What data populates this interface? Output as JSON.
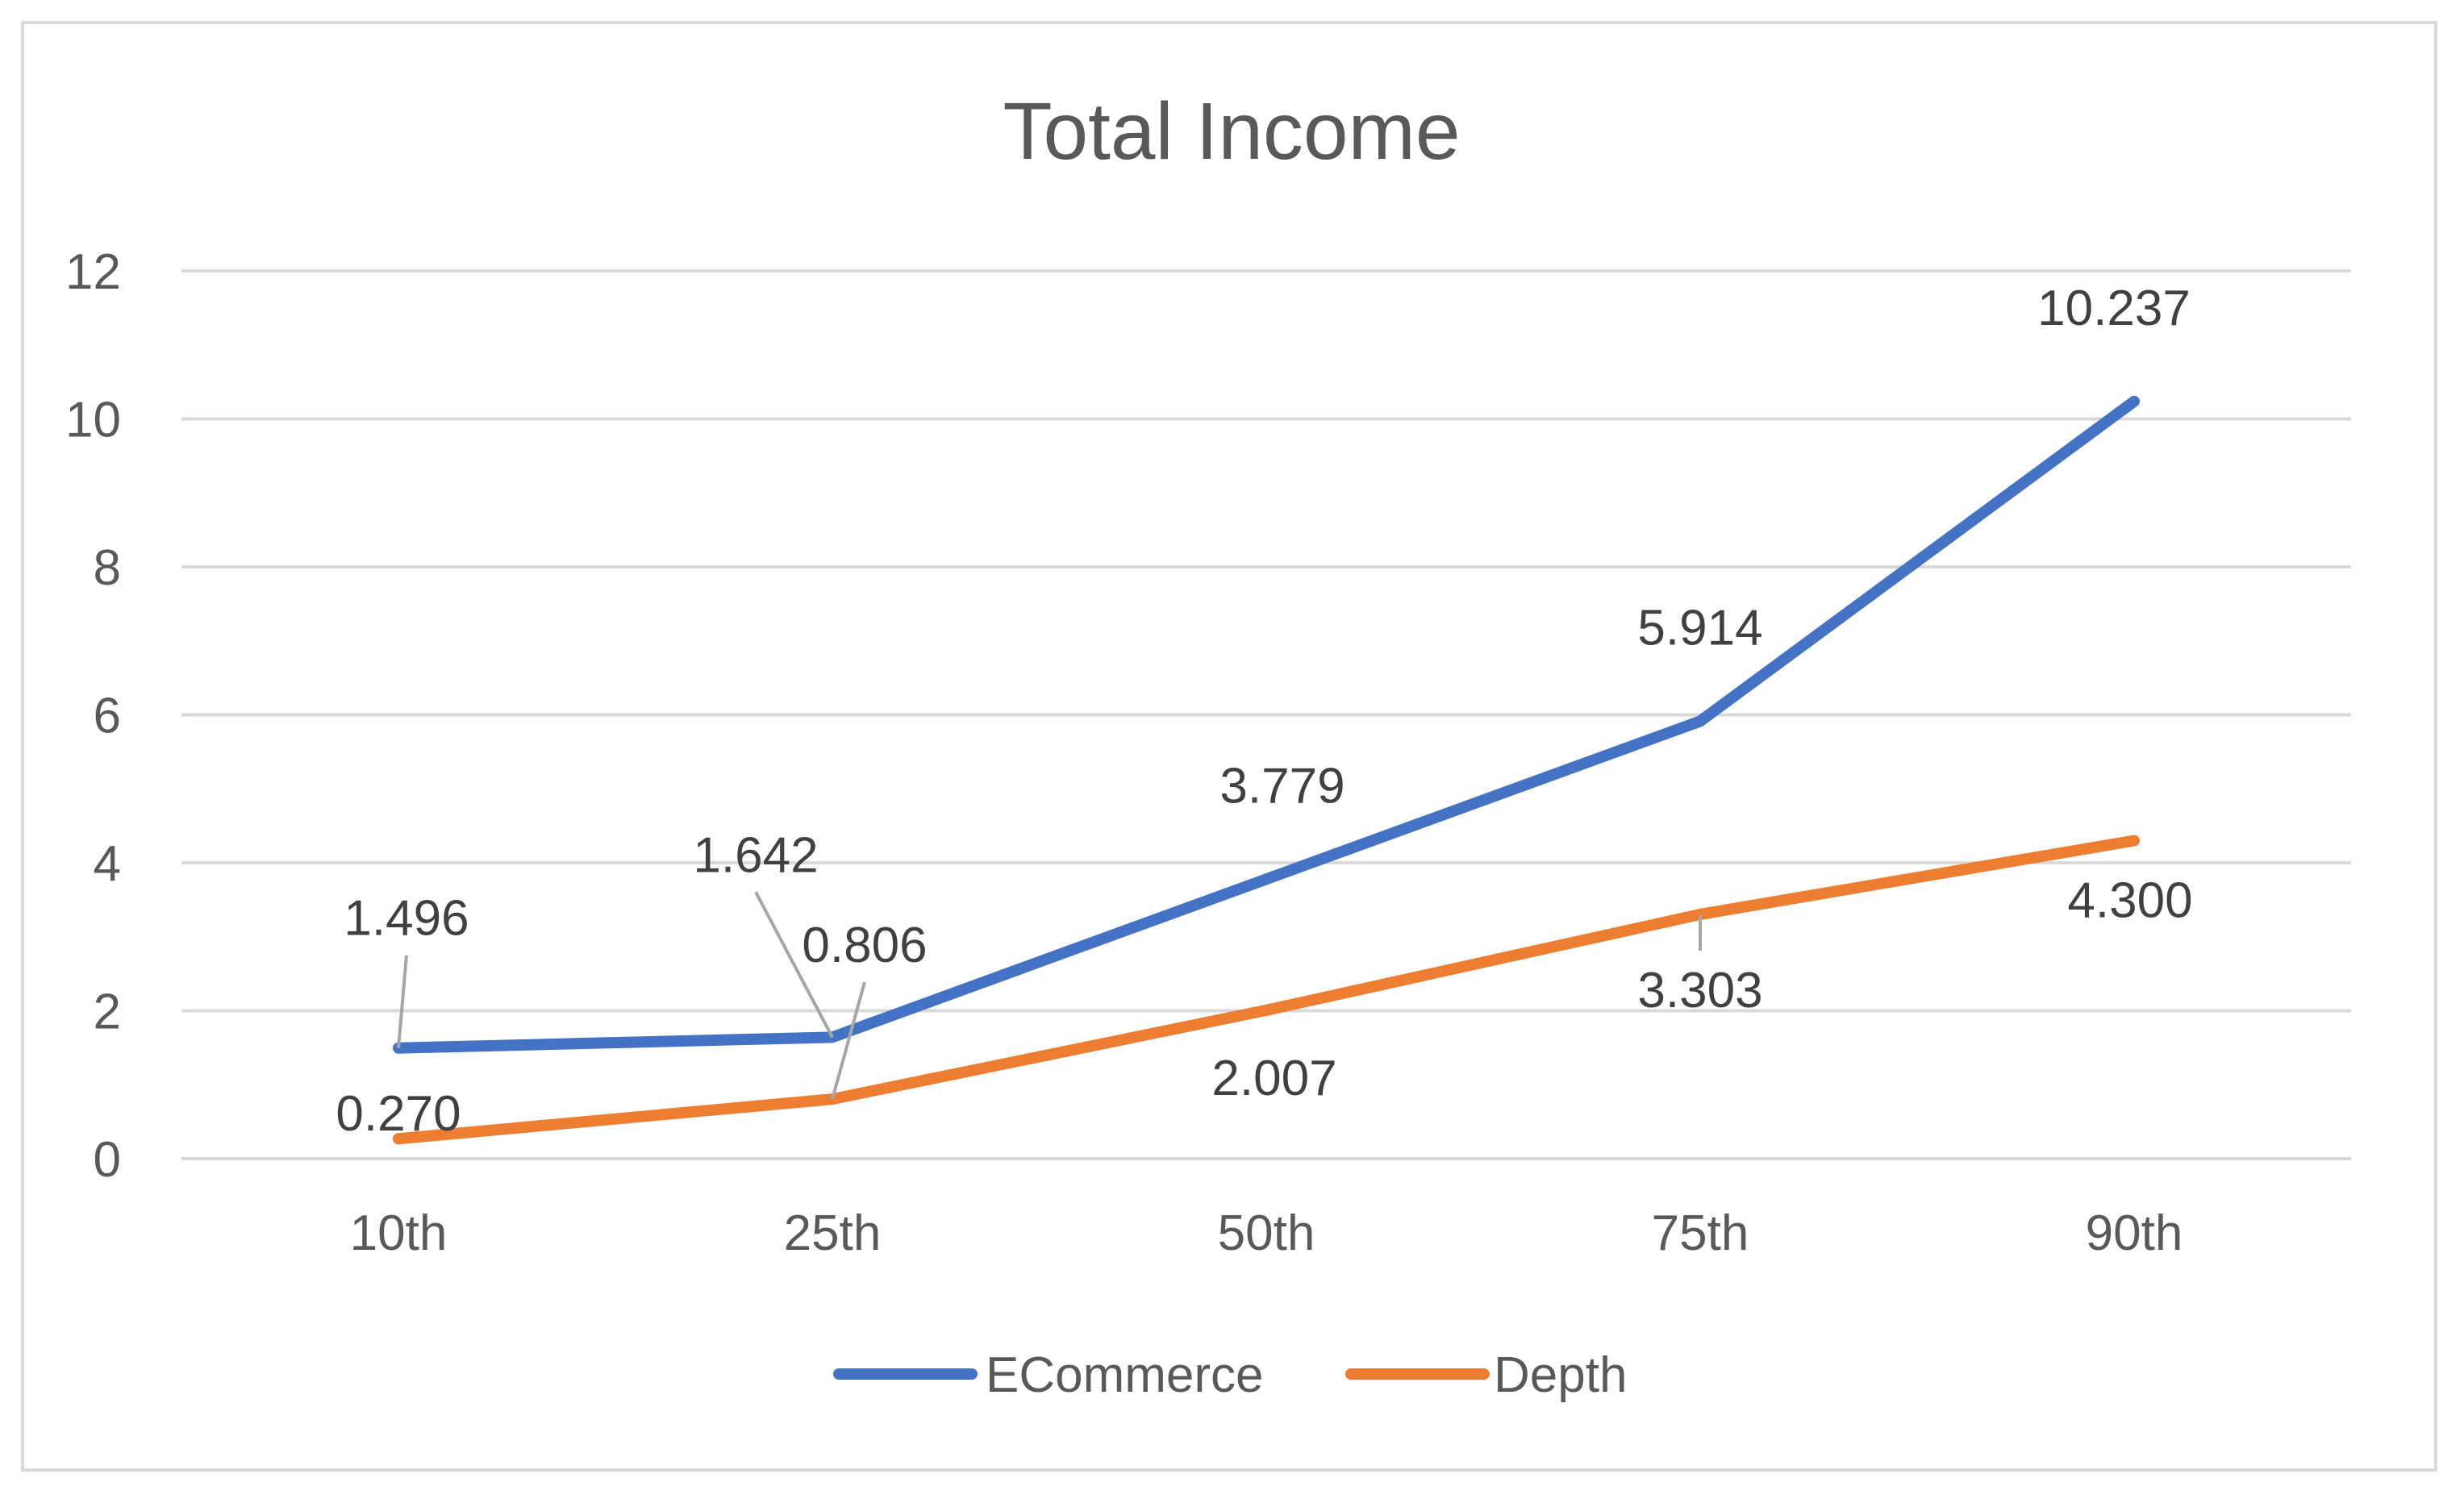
{
  "chart_data": {
    "type": "line",
    "title": "Total Income",
    "xlabel": "",
    "ylabel": "",
    "categories": [
      "10th",
      "25th",
      "50th",
      "75th",
      "90th"
    ],
    "ylim": [
      0,
      12
    ],
    "yticks": [
      "0",
      "2",
      "4",
      "6",
      "8",
      "10",
      "12"
    ],
    "grid": true,
    "legend_position": "bottom",
    "series": [
      {
        "name": "ECommerce",
        "color": "#4472c4",
        "values": [
          1.496,
          1.642,
          3.779,
          5.914,
          10.237
        ],
        "labels": [
          "1.496",
          "1.642",
          "3.779",
          "5.914",
          "10.237"
        ]
      },
      {
        "name": "Depth",
        "color": "#ed7d31",
        "values": [
          0.27,
          0.806,
          2.007,
          3.303,
          4.3
        ],
        "labels": [
          "0.270",
          "0.806",
          "2.007",
          "3.303",
          "4.300"
        ]
      }
    ]
  }
}
